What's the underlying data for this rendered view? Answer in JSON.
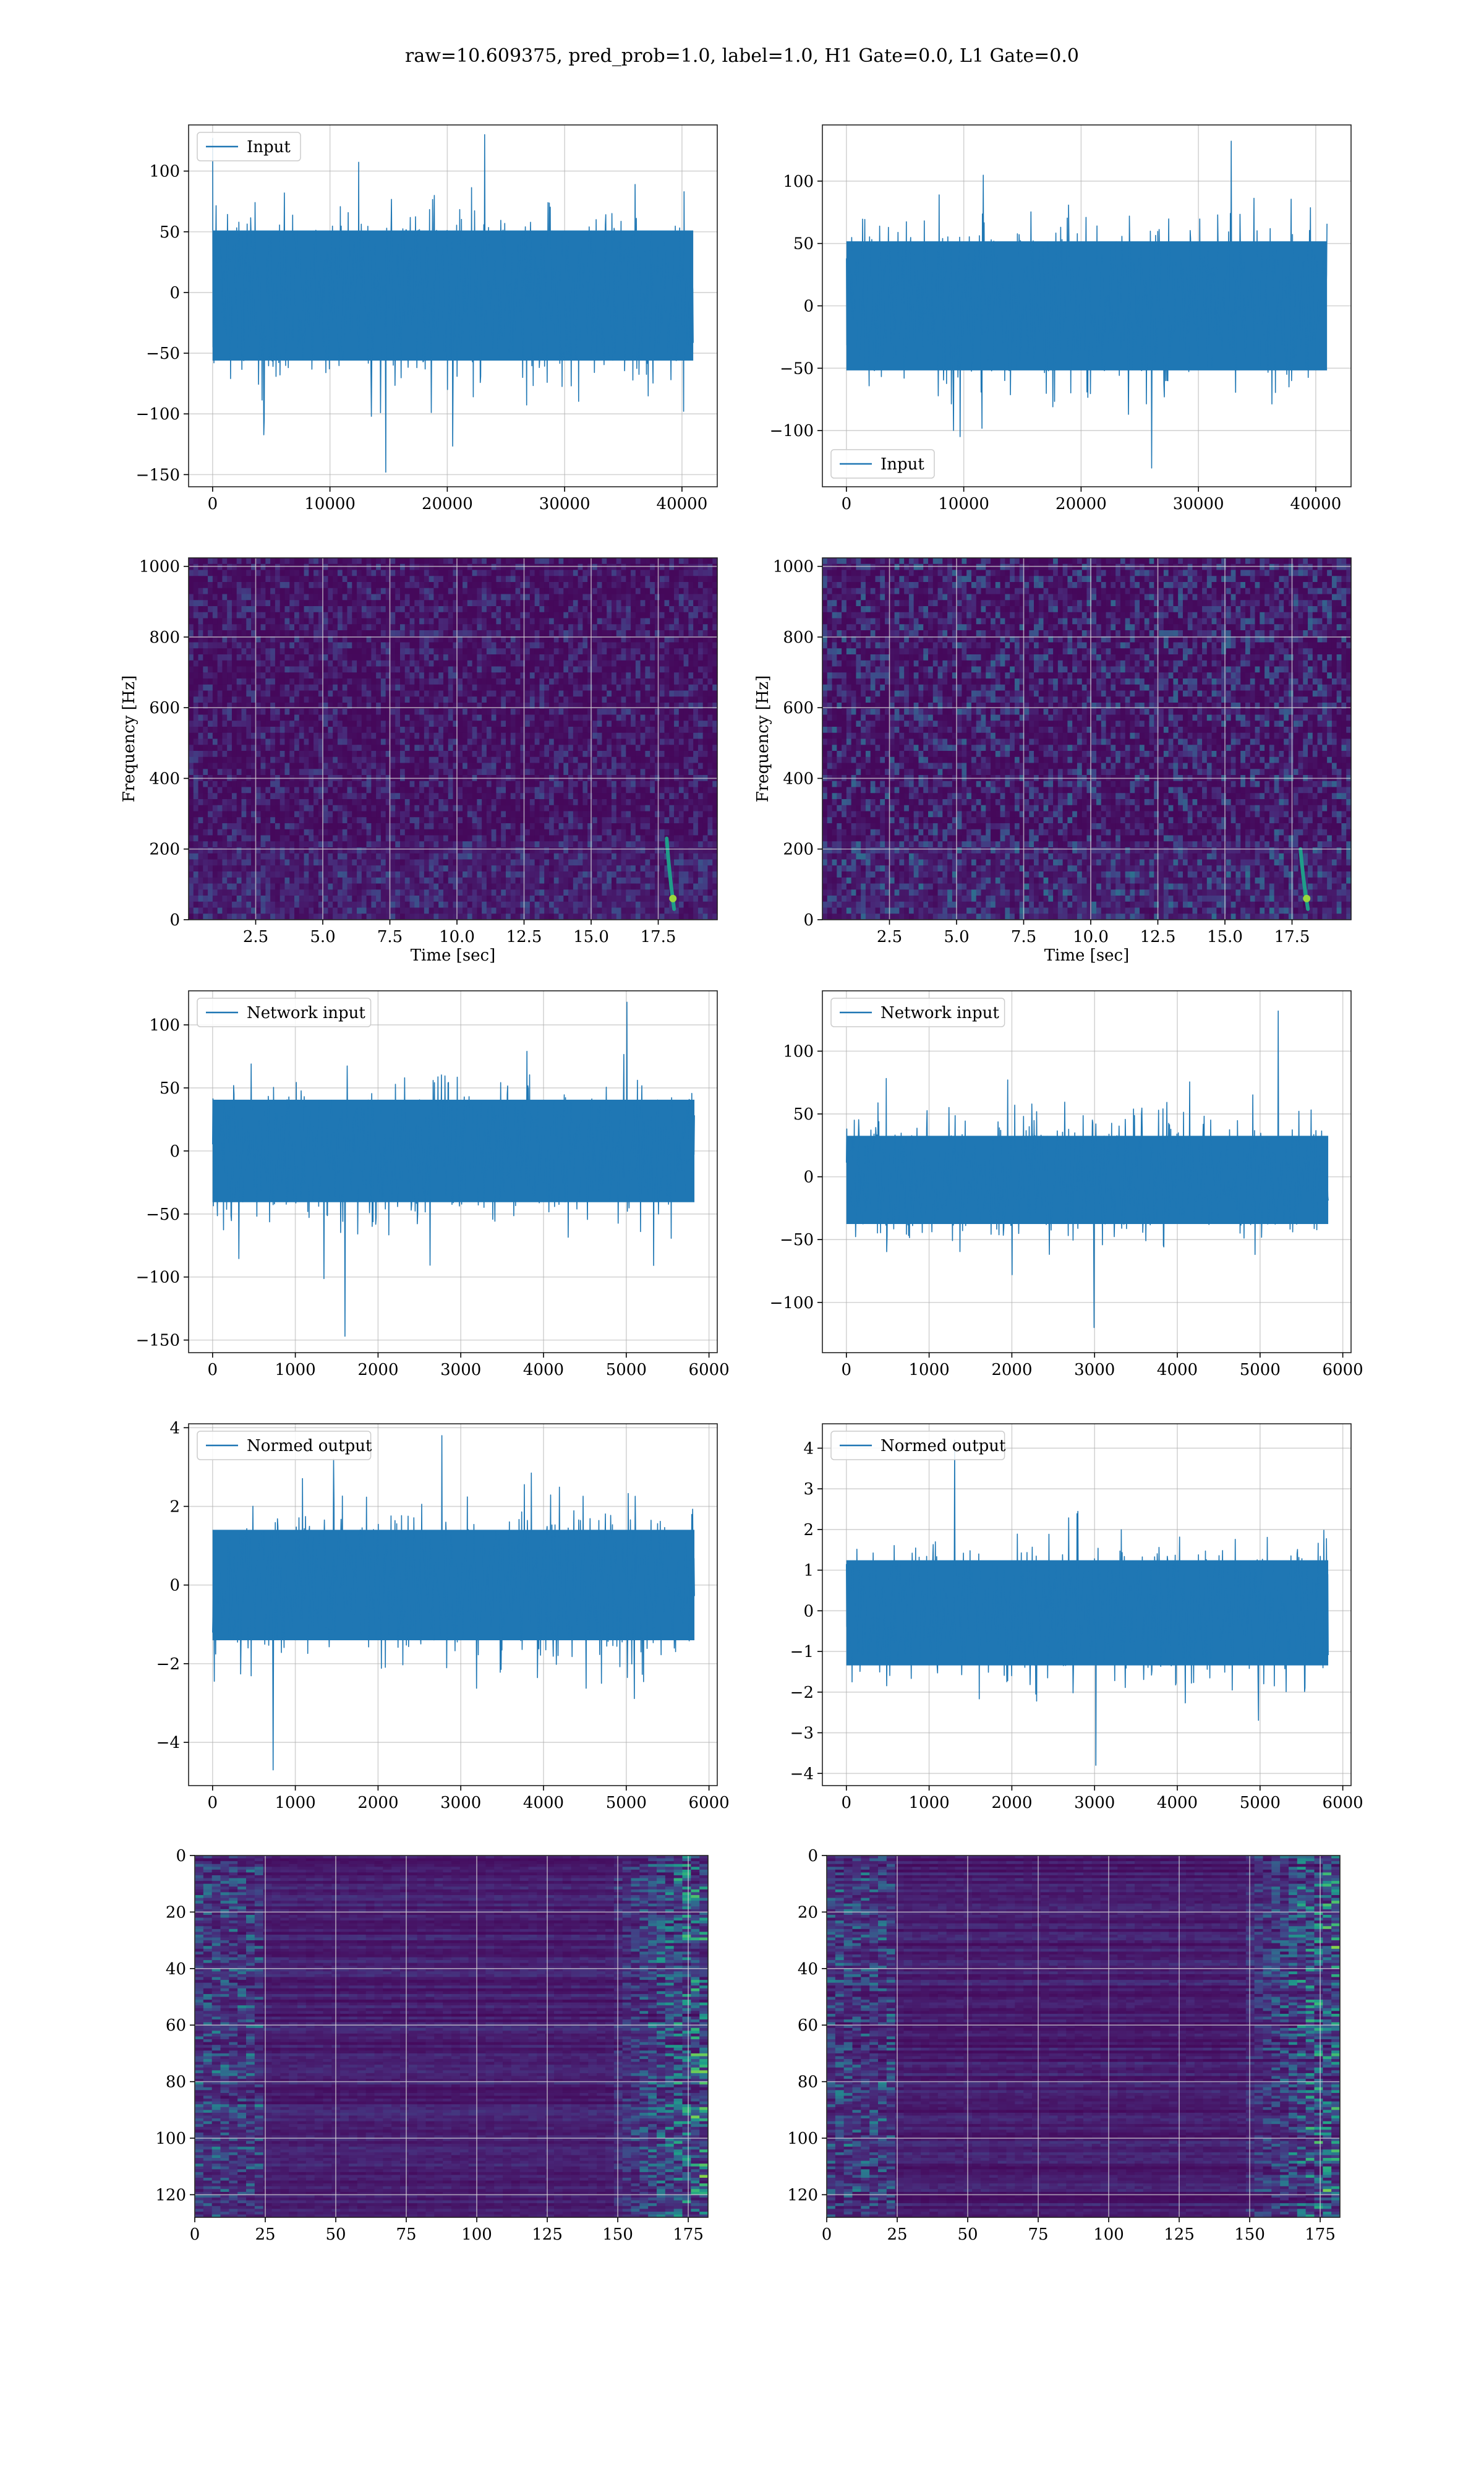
{
  "figure": {
    "suptitle": "raw=10.609375, pred_prob=1.0, label=1.0, H1 Gate=0.0, L1 Gate=0.0"
  },
  "colors": {
    "line": "#1f77b4",
    "grid": "#b0b0b0",
    "viridis_low": "#440154",
    "viridis_mid": "#21918c",
    "viridis_high": "#fde725"
  },
  "chart_data": [
    {
      "id": "r0c0",
      "type": "line",
      "row": 0,
      "col": 0,
      "legend": "Input",
      "legend_loc": "upper left",
      "xlim": [
        -2048,
        43008
      ],
      "ylim": [
        -160,
        138
      ],
      "xticks": [
        0,
        10000,
        20000,
        30000,
        40000
      ],
      "yticks": [
        -150,
        -100,
        -50,
        0,
        50,
        100
      ],
      "xlabel": "",
      "ylabel": "",
      "grid": true,
      "data_x_range": [
        0,
        40960
      ],
      "n_points": 40960,
      "series": [
        {
          "name": "Input",
          "envelope": {
            "typical_upper": 70,
            "typical_lower": -75,
            "max": 130,
            "min": -148
          }
        }
      ]
    },
    {
      "id": "r0c1",
      "type": "line",
      "row": 0,
      "col": 1,
      "legend": "Input",
      "legend_loc": "lower left",
      "xlim": [
        -2048,
        43008
      ],
      "ylim": [
        -145,
        145
      ],
      "xticks": [
        0,
        10000,
        20000,
        30000,
        40000
      ],
      "yticks": [
        -100,
        -50,
        0,
        50,
        100
      ],
      "xlabel": "",
      "ylabel": "",
      "grid": true,
      "data_x_range": [
        0,
        40960
      ],
      "n_points": 40960,
      "series": [
        {
          "name": "Input",
          "envelope": {
            "typical_upper": 70,
            "typical_lower": -70,
            "max": 132,
            "min": -130
          }
        }
      ]
    },
    {
      "id": "r1c0",
      "type": "heatmap",
      "row": 1,
      "col": 0,
      "title": "",
      "xlabel": "Time [sec]",
      "ylabel": "Frequency [Hz]",
      "xlim": [
        0,
        19.7
      ],
      "ylim": [
        0,
        1024
      ],
      "xticks": [
        2.5,
        5.0,
        7.5,
        10.0,
        12.5,
        15.0,
        17.5
      ],
      "yticks": [
        0,
        200,
        400,
        600,
        800,
        1000
      ],
      "grid": true,
      "colormap": "viridis",
      "notes_feature": {
        "time_sec": 18.0,
        "freq_range_hz": [
          30,
          230
        ]
      }
    },
    {
      "id": "r1c1",
      "type": "heatmap",
      "row": 1,
      "col": 1,
      "title": "",
      "xlabel": "Time [sec]",
      "ylabel": "Frequency [Hz]",
      "xlim": [
        0,
        19.7
      ],
      "ylim": [
        0,
        1024
      ],
      "xticks": [
        2.5,
        5.0,
        7.5,
        10.0,
        12.5,
        15.0,
        17.5
      ],
      "yticks": [
        0,
        200,
        400,
        600,
        800,
        1000
      ],
      "grid": true,
      "colormap": "viridis",
      "notes_feature": {
        "time_sec": 18.0,
        "freq_range_hz": [
          30,
          200
        ]
      }
    },
    {
      "id": "r2c0",
      "type": "line",
      "row": 2,
      "col": 0,
      "legend": "Network input",
      "legend_loc": "upper left",
      "xlim": [
        -290,
        6100
      ],
      "ylim": [
        -160,
        127
      ],
      "xticks": [
        0,
        1000,
        2000,
        3000,
        4000,
        5000,
        6000
      ],
      "yticks": [
        -150,
        -100,
        -50,
        0,
        50,
        100
      ],
      "xlabel": "",
      "ylabel": "",
      "grid": true,
      "data_x_range": [
        0,
        5824
      ],
      "n_points": 5824,
      "series": [
        {
          "name": "Network input",
          "envelope": {
            "typical_upper": 55,
            "typical_lower": -55,
            "max": 118,
            "min": -147
          }
        }
      ]
    },
    {
      "id": "r2c1",
      "type": "line",
      "row": 2,
      "col": 1,
      "legend": "Network input",
      "legend_loc": "upper left",
      "xlim": [
        -290,
        6100
      ],
      "ylim": [
        -140,
        148
      ],
      "xticks": [
        0,
        1000,
        2000,
        3000,
        4000,
        5000,
        6000
      ],
      "yticks": [
        -100,
        -50,
        0,
        50,
        100
      ],
      "xlabel": "",
      "ylabel": "",
      "grid": true,
      "data_x_range": [
        0,
        5824
      ],
      "n_points": 5824,
      "series": [
        {
          "name": "Network input",
          "envelope": {
            "typical_upper": 45,
            "typical_lower": -50,
            "max": 132,
            "min": -120
          }
        }
      ]
    },
    {
      "id": "r3c0",
      "type": "line",
      "row": 3,
      "col": 0,
      "legend": "Normed output",
      "legend_loc": "upper left",
      "xlim": [
        -290,
        6100
      ],
      "ylim": [
        -5.1,
        4.1
      ],
      "xticks": [
        0,
        1000,
        2000,
        3000,
        4000,
        5000,
        6000
      ],
      "yticks": [
        -4,
        -2,
        0,
        2,
        4
      ],
      "xlabel": "",
      "ylabel": "",
      "grid": true,
      "data_x_range": [
        0,
        5824
      ],
      "n_points": 5824,
      "series": [
        {
          "name": "Normed output",
          "envelope": {
            "typical_upper": 1.9,
            "typical_lower": -1.9,
            "max": 3.8,
            "min": -4.7
          }
        }
      ]
    },
    {
      "id": "r3c1",
      "type": "line",
      "row": 3,
      "col": 1,
      "legend": "Normed output",
      "legend_loc": "upper left",
      "xlim": [
        -290,
        6100
      ],
      "ylim": [
        -4.3,
        4.6
      ],
      "xticks": [
        0,
        1000,
        2000,
        3000,
        4000,
        5000,
        6000
      ],
      "yticks": [
        -4,
        -3,
        -2,
        -1,
        0,
        1,
        2,
        3,
        4
      ],
      "xlabel": "",
      "ylabel": "",
      "grid": true,
      "data_x_range": [
        0,
        5824
      ],
      "n_points": 5824,
      "series": [
        {
          "name": "Normed output",
          "envelope": {
            "typical_upper": 1.7,
            "typical_lower": -1.8,
            "max": 4.2,
            "min": -3.8
          }
        }
      ]
    },
    {
      "id": "r4c0",
      "type": "heatmap",
      "row": 4,
      "col": 0,
      "xlabel": "",
      "ylabel": "",
      "colormap": "viridis",
      "grid": true,
      "xlim": [
        0,
        182
      ],
      "ylim": [
        128,
        0
      ],
      "xticks": [
        0,
        25,
        50,
        75,
        100,
        125,
        150,
        175
      ],
      "yticks": [
        0,
        20,
        40,
        60,
        80,
        100,
        120
      ],
      "shape": [
        128,
        182
      ]
    },
    {
      "id": "r4c1",
      "type": "heatmap",
      "row": 4,
      "col": 1,
      "xlabel": "",
      "ylabel": "",
      "colormap": "viridis",
      "grid": true,
      "xlim": [
        0,
        182
      ],
      "ylim": [
        128,
        0
      ],
      "xticks": [
        0,
        25,
        50,
        75,
        100,
        125,
        150,
        175
      ],
      "yticks": [
        0,
        20,
        40,
        60,
        80,
        100,
        120
      ],
      "shape": [
        128,
        182
      ]
    }
  ]
}
